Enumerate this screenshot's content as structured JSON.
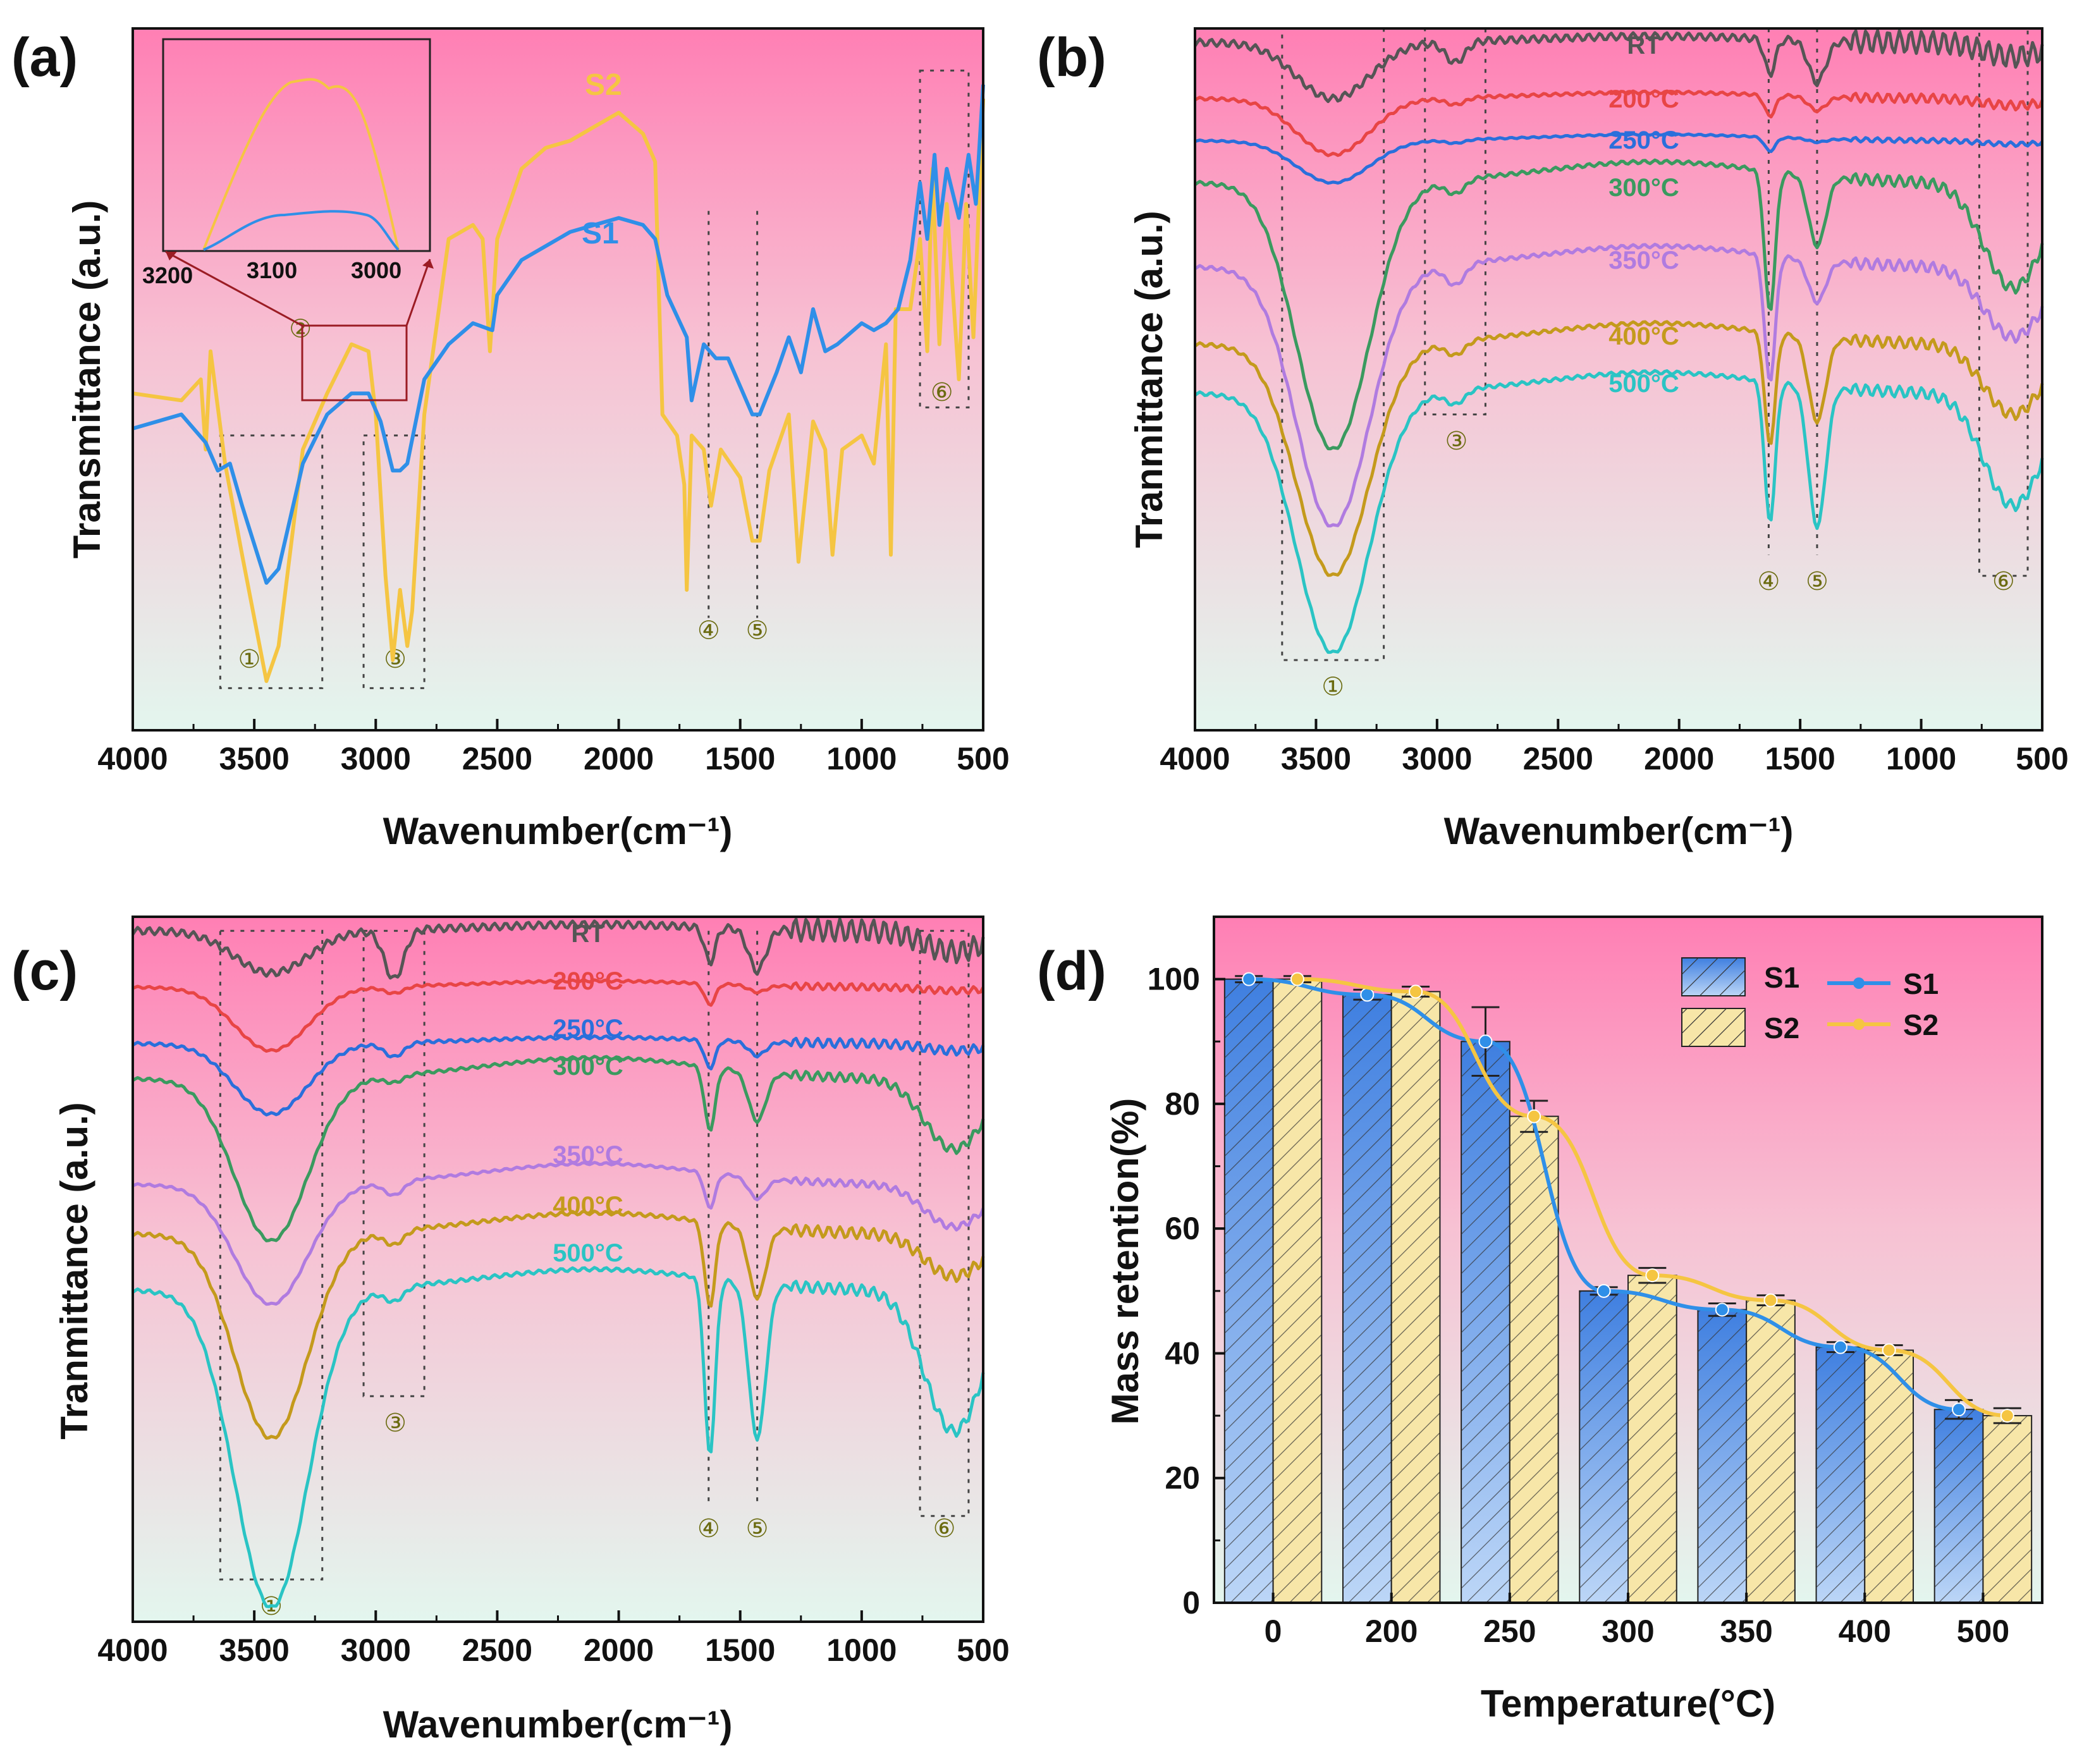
{
  "figure": {
    "colors": {
      "RT": "#555555",
      "200": "#e84545",
      "250": "#2a6fdb",
      "300": "#3a9a5f",
      "350": "#b07be0",
      "400": "#c49a1c",
      "500": "#2ac4c4",
      "S1": "#2f8fe8",
      "S2": "#f5c542",
      "anno": "#6b6b10",
      "bg_top": "#ff7fb4",
      "bg_bottom": "#e3f6ee"
    }
  },
  "chart_data": [
    {
      "panel": "(a)",
      "type": "line",
      "xlabel": "Wavenumber(cm⁻¹)",
      "ylabel": "Transmittance (a.u.)",
      "xlim": [
        4000,
        500
      ],
      "xticks": [
        "4000",
        "3500",
        "3000",
        "2500",
        "2000",
        "1500",
        "1000",
        "500"
      ],
      "series": [
        {
          "name": "S2",
          "label": "S2",
          "color": "#f5c542",
          "points": [
            [
              4000,
              0.52
            ],
            [
              3800,
              0.53
            ],
            [
              3720,
              0.5
            ],
            [
              3700,
              0.6
            ],
            [
              3680,
              0.46
            ],
            [
              3620,
              0.62
            ],
            [
              3550,
              0.75
            ],
            [
              3450,
              0.93
            ],
            [
              3400,
              0.88
            ],
            [
              3300,
              0.6
            ],
            [
              3200,
              0.52
            ],
            [
              3100,
              0.45
            ],
            [
              3030,
              0.46
            ],
            [
              3000,
              0.55
            ],
            [
              2960,
              0.78
            ],
            [
              2930,
              0.9
            ],
            [
              2900,
              0.8
            ],
            [
              2870,
              0.88
            ],
            [
              2850,
              0.83
            ],
            [
              2800,
              0.55
            ],
            [
              2700,
              0.3
            ],
            [
              2600,
              0.28
            ],
            [
              2560,
              0.3
            ],
            [
              2530,
              0.46
            ],
            [
              2500,
              0.3
            ],
            [
              2400,
              0.2
            ],
            [
              2300,
              0.17
            ],
            [
              2200,
              0.16
            ],
            [
              2100,
              0.14
            ],
            [
              2000,
              0.12
            ],
            [
              1900,
              0.15
            ],
            [
              1850,
              0.19
            ],
            [
              1820,
              0.55
            ],
            [
              1760,
              0.58
            ],
            [
              1730,
              0.65
            ],
            [
              1720,
              0.8
            ],
            [
              1700,
              0.58
            ],
            [
              1650,
              0.6
            ],
            [
              1620,
              0.68
            ],
            [
              1580,
              0.6
            ],
            [
              1500,
              0.64
            ],
            [
              1450,
              0.73
            ],
            [
              1420,
              0.73
            ],
            [
              1380,
              0.63
            ],
            [
              1300,
              0.55
            ],
            [
              1260,
              0.76
            ],
            [
              1200,
              0.56
            ],
            [
              1150,
              0.6
            ],
            [
              1120,
              0.75
            ],
            [
              1080,
              0.6
            ],
            [
              1000,
              0.58
            ],
            [
              950,
              0.62
            ],
            [
              900,
              0.45
            ],
            [
              880,
              0.75
            ],
            [
              860,
              0.4
            ],
            [
              800,
              0.4
            ],
            [
              760,
              0.3
            ],
            [
              730,
              0.46
            ],
            [
              710,
              0.2
            ],
            [
              680,
              0.45
            ],
            [
              650,
              0.25
            ],
            [
              600,
              0.5
            ],
            [
              570,
              0.25
            ],
            [
              540,
              0.44
            ],
            [
              500,
              0.1
            ]
          ]
        },
        {
          "name": "S1",
          "label": "S1",
          "color": "#2f8fe8",
          "points": [
            [
              4000,
              0.57
            ],
            [
              3800,
              0.55
            ],
            [
              3700,
              0.59
            ],
            [
              3650,
              0.63
            ],
            [
              3600,
              0.62
            ],
            [
              3550,
              0.68
            ],
            [
              3450,
              0.79
            ],
            [
              3400,
              0.77
            ],
            [
              3300,
              0.62
            ],
            [
              3200,
              0.55
            ],
            [
              3100,
              0.52
            ],
            [
              3030,
              0.52
            ],
            [
              2980,
              0.56
            ],
            [
              2930,
              0.63
            ],
            [
              2900,
              0.63
            ],
            [
              2870,
              0.62
            ],
            [
              2800,
              0.5
            ],
            [
              2700,
              0.45
            ],
            [
              2600,
              0.42
            ],
            [
              2520,
              0.43
            ],
            [
              2500,
              0.38
            ],
            [
              2400,
              0.33
            ],
            [
              2300,
              0.31
            ],
            [
              2200,
              0.29
            ],
            [
              2100,
              0.28
            ],
            [
              2000,
              0.27
            ],
            [
              1900,
              0.28
            ],
            [
              1850,
              0.3
            ],
            [
              1800,
              0.38
            ],
            [
              1720,
              0.44
            ],
            [
              1700,
              0.53
            ],
            [
              1650,
              0.45
            ],
            [
              1600,
              0.47
            ],
            [
              1550,
              0.47
            ],
            [
              1450,
              0.55
            ],
            [
              1420,
              0.55
            ],
            [
              1350,
              0.49
            ],
            [
              1300,
              0.44
            ],
            [
              1250,
              0.49
            ],
            [
              1200,
              0.4
            ],
            [
              1150,
              0.46
            ],
            [
              1100,
              0.45
            ],
            [
              1000,
              0.42
            ],
            [
              950,
              0.43
            ],
            [
              900,
              0.42
            ],
            [
              850,
              0.4
            ],
            [
              800,
              0.33
            ],
            [
              760,
              0.22
            ],
            [
              730,
              0.3
            ],
            [
              700,
              0.18
            ],
            [
              680,
              0.28
            ],
            [
              650,
              0.2
            ],
            [
              600,
              0.27
            ],
            [
              560,
              0.18
            ],
            [
              530,
              0.25
            ],
            [
              500,
              0.08
            ]
          ]
        }
      ],
      "annotations": [
        "①",
        "②",
        "③",
        "④",
        "⑤",
        "⑥"
      ],
      "inset": {
        "xticks": [
          "3200",
          "3100",
          "3000"
        ]
      }
    },
    {
      "panel": "(b)",
      "type": "line",
      "xlabel": "Wavenumber(cm⁻¹)",
      "ylabel": "Tranmittance (a.u.)",
      "xlim": [
        4000,
        500
      ],
      "xticks": [
        "4000",
        "3500",
        "3000",
        "2500",
        "2000",
        "1500",
        "1000",
        "500"
      ],
      "series": [
        {
          "name": "RT",
          "label": "RT",
          "offset": 0.0,
          "depth": 0.08,
          "band2": 0.03,
          "band4": 0.05,
          "band5": 0.06,
          "band6": 0.02,
          "noise": 0.01
        },
        {
          "name": "200",
          "label": "200°C",
          "offset": 0.08,
          "depth": 0.08,
          "band2": 0.01,
          "band4": 0.03,
          "band5": 0.02,
          "band6": 0.01,
          "noise": 0.004
        },
        {
          "name": "250",
          "label": "250°C",
          "offset": 0.14,
          "depth": 0.06,
          "band2": 0.005,
          "band4": 0.02,
          "band5": 0.005,
          "band6": 0.005,
          "noise": 0.002
        },
        {
          "name": "300",
          "label": "300°C",
          "offset": 0.2,
          "depth": 0.38,
          "band2": 0.02,
          "band4": 0.2,
          "band5": 0.1,
          "band6": 0.15,
          "noise": 0.005
        },
        {
          "name": "350",
          "label": "350°C",
          "offset": 0.32,
          "depth": 0.37,
          "band2": 0.03,
          "band4": 0.18,
          "band5": 0.06,
          "band6": 0.1,
          "noise": 0.005
        },
        {
          "name": "400",
          "label": "400°C",
          "offset": 0.43,
          "depth": 0.33,
          "band2": 0.02,
          "band4": 0.16,
          "band5": 0.12,
          "band6": 0.1,
          "noise": 0.005
        },
        {
          "name": "500",
          "label": "500°C",
          "offset": 0.5,
          "depth": 0.37,
          "band2": 0.02,
          "band4": 0.2,
          "band5": 0.2,
          "band6": 0.16,
          "noise": 0.005
        }
      ],
      "annotations": [
        "①",
        "③",
        "④",
        "⑤",
        "⑥"
      ]
    },
    {
      "panel": "(c)",
      "type": "line",
      "xlabel": "Wavenumber(cm⁻¹)",
      "ylabel": "Tranmittance (a.u.)",
      "xlim": [
        4000,
        500
      ],
      "xticks": [
        "4000",
        "3500",
        "3000",
        "2500",
        "2000",
        "1500",
        "1000",
        "500"
      ],
      "series": [
        {
          "name": "RT",
          "label": "RT",
          "offset": 0.0,
          "depth": 0.06,
          "band2": 0.07,
          "band4": 0.05,
          "band5": 0.06,
          "band6": 0.03,
          "noise": 0.01
        },
        {
          "name": "200",
          "label": "200°C",
          "offset": 0.08,
          "depth": 0.09,
          "band2": 0.01,
          "band4": 0.03,
          "band5": 0.01,
          "band6": 0.005,
          "noise": 0.003
        },
        {
          "name": "250",
          "label": "250°C",
          "offset": 0.16,
          "depth": 0.1,
          "band2": 0.02,
          "band4": 0.04,
          "band5": 0.02,
          "band6": 0.01,
          "noise": 0.004
        },
        {
          "name": "300",
          "label": "300°C",
          "offset": 0.21,
          "depth": 0.23,
          "band2": 0.01,
          "band4": 0.09,
          "band5": 0.07,
          "band6": 0.1,
          "noise": 0.004
        },
        {
          "name": "350",
          "label": "350°C",
          "offset": 0.36,
          "depth": 0.17,
          "band2": 0.02,
          "band4": 0.05,
          "band5": 0.03,
          "band6": 0.06,
          "noise": 0.003
        },
        {
          "name": "400",
          "label": "400°C",
          "offset": 0.43,
          "depth": 0.29,
          "band2": 0.02,
          "band4": 0.12,
          "band5": 0.1,
          "band6": 0.06,
          "noise": 0.005
        },
        {
          "name": "500",
          "label": "500°C",
          "offset": 0.51,
          "depth": 0.45,
          "band2": 0.02,
          "band4": 0.25,
          "band5": 0.22,
          "band6": 0.2,
          "noise": 0.005
        }
      ],
      "annotations": [
        "①",
        "③",
        "④",
        "⑤",
        "⑥"
      ]
    },
    {
      "panel": "(d)",
      "type": "bar",
      "xlabel": "Temperature(°C)",
      "ylabel": "Mass retention(%)",
      "ylim": [
        0,
        110
      ],
      "yticks": [
        "0",
        "20",
        "40",
        "60",
        "80",
        "100"
      ],
      "categories": [
        "0",
        "200",
        "250",
        "300",
        "350",
        "400",
        "500"
      ],
      "series": [
        {
          "name": "S1",
          "values": [
            100,
            97.5,
            90,
            50,
            47,
            41,
            31
          ],
          "errors": [
            0.5,
            0.8,
            5.5,
            0.6,
            1.0,
            0.8,
            1.5
          ]
        },
        {
          "name": "S2",
          "values": [
            100,
            98,
            78,
            52.5,
            48.5,
            40.5,
            30
          ],
          "errors": [
            0.5,
            0.8,
            2.5,
            1.2,
            0.8,
            0.8,
            1.2
          ]
        }
      ],
      "legend": {
        "bars": [
          "S1",
          "S2"
        ],
        "lines": [
          "S1",
          "S2"
        ],
        "position": "top-right"
      }
    }
  ]
}
